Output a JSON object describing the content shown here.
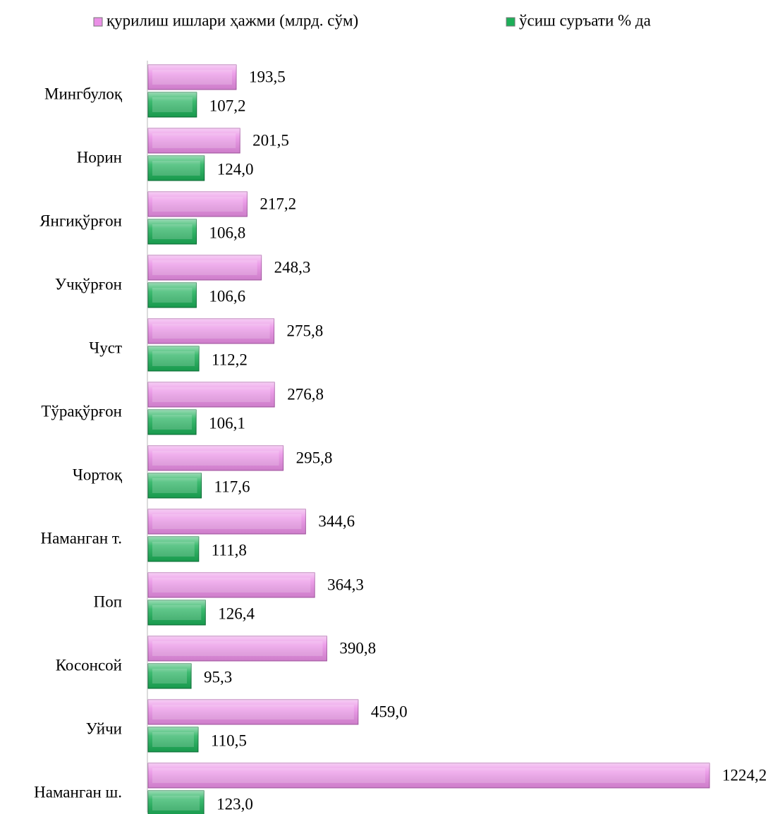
{
  "chart_data": {
    "type": "barh",
    "categories": [
      "Мингбулоқ",
      "Норин",
      "Янгиқўрғон",
      "Учқўрғон",
      "Чуст",
      "Тўрақўрғон",
      "Чортоқ",
      "Наманган т.",
      "Поп",
      "Косонсой",
      "Уйчи",
      "Наманган ш."
    ],
    "series": [
      {
        "name": "қурилиш ишлари ҳажми (млрд. сўм)",
        "color": "#ea8fe6",
        "values": [
          193.5,
          201.5,
          217.2,
          248.3,
          275.8,
          276.8,
          295.8,
          344.6,
          364.3,
          390.8,
          459.0,
          1224.2
        ],
        "value_labels": [
          "193,5",
          "201,5",
          "217,2",
          "248,3",
          "275,8",
          "276,8",
          "295,8",
          "344,6",
          "364,3",
          "390,8",
          "459,0",
          "1224,2"
        ]
      },
      {
        "name": "ўсиш суръати % да",
        "color": "#1caf58",
        "values": [
          107.2,
          124.0,
          106.8,
          106.6,
          112.2,
          106.1,
          117.6,
          111.8,
          126.4,
          95.3,
          110.5,
          123.0
        ],
        "value_labels": [
          "107,2",
          "124,0",
          "106,8",
          "106,6",
          "112,2",
          "106,1",
          "117,6",
          "111,8",
          "126,4",
          "95,3",
          "110,5",
          "123,0"
        ]
      }
    ],
    "legend": "top"
  }
}
